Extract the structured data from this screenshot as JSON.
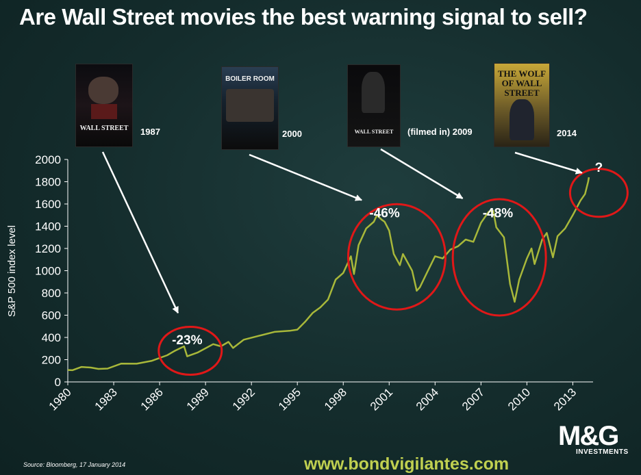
{
  "title": "Are Wall Street movies the best warning signal to sell?",
  "posters": [
    {
      "id": "wall-street-1987",
      "title": "WALL STREET",
      "label": "1987"
    },
    {
      "id": "boiler-room",
      "title": "BOILER ROOM",
      "label": "2000"
    },
    {
      "id": "wall-street-2009",
      "title": "WALL STREET",
      "label": "(filmed in) 2009"
    },
    {
      "id": "wolf-of-wall-street",
      "title": "THE WOLF OF WALL STREET",
      "label": "2014"
    }
  ],
  "chart_data": {
    "type": "line",
    "ylabel": "S&P 500 index level",
    "ylim": [
      0,
      2000
    ],
    "yticks": [
      "0",
      "200",
      "400",
      "600",
      "800",
      "1000",
      "1200",
      "1400",
      "1600",
      "1800",
      "2000"
    ],
    "xlim": [
      1980,
      2014.1
    ],
    "xticks": [
      "1980",
      "1983",
      "1986",
      "1989",
      "1992",
      "1995",
      "1998",
      "2001",
      "2004",
      "2007",
      "2010",
      "2013"
    ],
    "series": [
      {
        "name": "S&P 500",
        "color": "#a8b83a",
        "x": [
          1980,
          1980.3,
          1980.9,
          1981.5,
          1982.0,
          1982.6,
          1983.5,
          1984.5,
          1985.5,
          1986.5,
          1987.0,
          1987.6,
          1987.8,
          1988.5,
          1989.5,
          1990.0,
          1990.5,
          1990.8,
          1991.5,
          1992.5,
          1993.5,
          1994.5,
          1995.0,
          1995.5,
          1996.0,
          1996.5,
          1997.0,
          1997.5,
          1998.0,
          1998.5,
          1998.7,
          1999.0,
          1999.5,
          2000.0,
          2000.2,
          2000.5,
          2000.7,
          2001.0,
          2001.3,
          2001.7,
          2001.9,
          2002.5,
          2002.8,
          2003.0,
          2003.5,
          2004.0,
          2004.5,
          2005.0,
          2005.5,
          2006.0,
          2006.5,
          2007.0,
          2007.5,
          2007.8,
          2008.0,
          2008.5,
          2008.9,
          2009.2,
          2009.5,
          2010.0,
          2010.3,
          2010.5,
          2011.0,
          2011.3,
          2011.7,
          2012.0,
          2012.5,
          2013.0,
          2013.5,
          2013.8,
          2014.0,
          2014.05
        ],
        "values": [
          107,
          105,
          135,
          129,
          117,
          120,
          165,
          164,
          190,
          240,
          280,
          320,
          230,
          265,
          340,
          320,
          360,
          305,
          380,
          415,
          450,
          460,
          470,
          540,
          620,
          670,
          740,
          920,
          980,
          1130,
          970,
          1230,
          1380,
          1440,
          1500,
          1460,
          1440,
          1360,
          1150,
          1050,
          1150,
          1000,
          820,
          850,
          990,
          1130,
          1110,
          1190,
          1220,
          1280,
          1260,
          1430,
          1530,
          1540,
          1390,
          1300,
          880,
          720,
          920,
          1110,
          1200,
          1060,
          1280,
          1340,
          1120,
          1310,
          1380,
          1500,
          1630,
          1690,
          1800,
          1840
        ]
      }
    ],
    "annotations": [
      {
        "text": "-23%",
        "x": 1987.8,
        "y": 340
      },
      {
        "text": "-46%",
        "x": 2000.7,
        "y": 1480
      },
      {
        "text": "-48%",
        "x": 2008.1,
        "y": 1480
      },
      {
        "text": "?",
        "x": 2014.7,
        "y": 1890
      }
    ],
    "circles": [
      {
        "cx": 1988.0,
        "cy": 280
      },
      {
        "cx": 2001.5,
        "cy": 1125
      },
      {
        "cx": 2008.2,
        "cy": 1120
      },
      {
        "cx": 2014.7,
        "cy": 1700
      }
    ],
    "arrows": [
      {
        "from": "wall-street-1987",
        "x": 1987.2,
        "y": 620
      },
      {
        "from": "boiler-room",
        "x": 1999.2,
        "y": 1635
      },
      {
        "from": "wall-street-2009",
        "x": 2005.8,
        "y": 1650
      },
      {
        "from": "wolf-of-wall-street",
        "x": 2013.6,
        "y": 1880
      }
    ]
  },
  "footer": {
    "source": "Source: Bloomberg, 17 January 2014",
    "website": "www.bondvigilantes.com",
    "logo": "M&G",
    "logo_sub": "INVESTMENTS"
  }
}
